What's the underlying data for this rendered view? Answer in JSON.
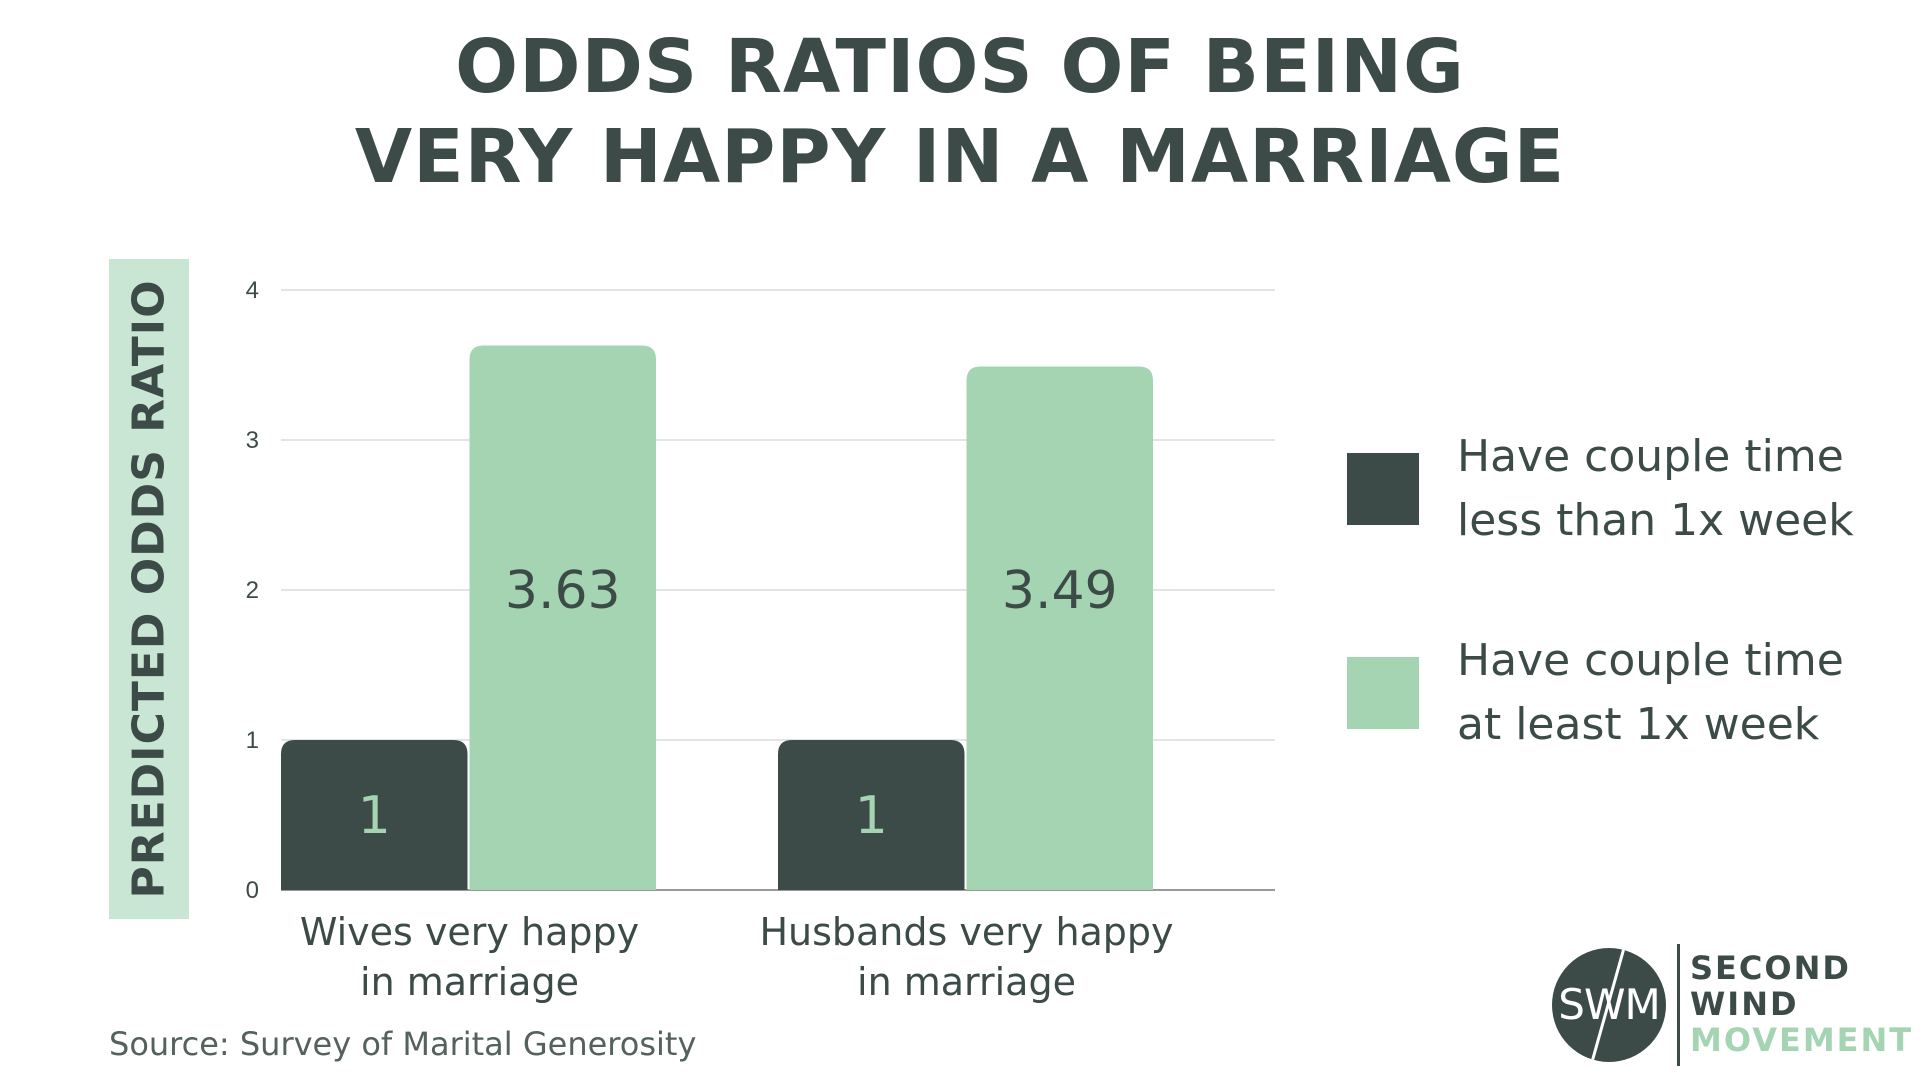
{
  "colors": {
    "dark": "#3d4b48",
    "light": "#a5d4b3",
    "ylabel_bg": "#c8e6d3",
    "grid": "#dcdcdc"
  },
  "chart_data": {
    "type": "bar",
    "title": "ODDS RATIOS OF BEING VERY HAPPY IN A MARRIAGE",
    "title_lines": [
      "ODDS RATIOS OF BEING",
      "VERY HAPPY IN A MARRIAGE"
    ],
    "ylabel": "PREDICTED ODDS RATIO",
    "ylim": [
      0,
      4
    ],
    "yticks": [
      0,
      1,
      2,
      3,
      4
    ],
    "grid": true,
    "categories": [
      "Wives very happy in marriage",
      "Husbands very happy in marriage"
    ],
    "category_lines": [
      [
        "Wives very happy",
        "in marriage"
      ],
      [
        "Husbands very happy",
        "in marriage"
      ]
    ],
    "series": [
      {
        "name": "Have couple time less than 1x week",
        "color": "#3d4b48",
        "label_color": "#a5d4b3",
        "values": [
          1,
          1
        ],
        "labels": [
          "1",
          "1"
        ]
      },
      {
        "name": "Have couple time at least 1x week",
        "color": "#a5d4b3",
        "label_color": "#3d4b48",
        "values": [
          3.63,
          3.49
        ],
        "labels": [
          "3.63",
          "3.49"
        ]
      }
    ],
    "legend_position": "right"
  },
  "legend": [
    {
      "text": "Have couple time\nless than 1x week",
      "color": "#3d4b48"
    },
    {
      "text": "Have couple time\nat least 1x week",
      "color": "#a5d4b3"
    }
  ],
  "source": "Source: Survey of Marital Generosity",
  "logo": {
    "monogram": "SWM",
    "words": [
      {
        "text": "SECOND",
        "color": "#3d4b48"
      },
      {
        "text": "WIND",
        "color": "#3d4b48"
      },
      {
        "text": "MOVEMENT",
        "color": "#a5d4b3"
      }
    ]
  }
}
